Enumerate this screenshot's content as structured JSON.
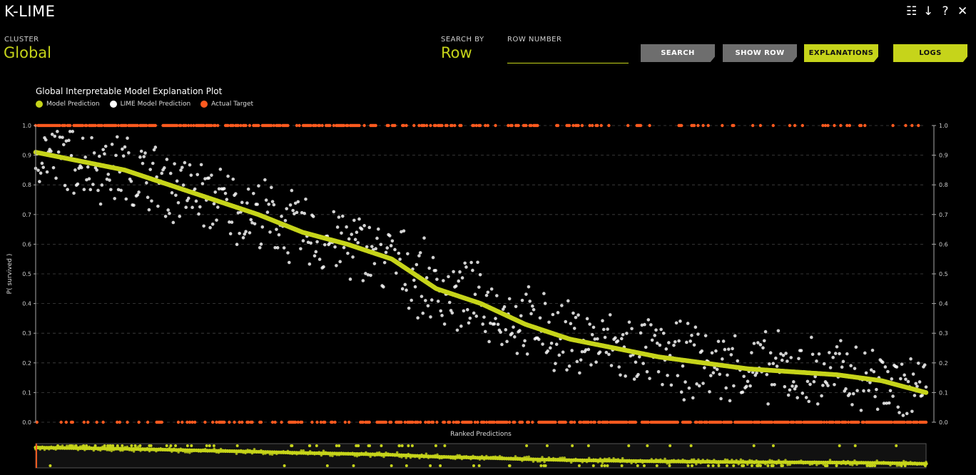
{
  "app": {
    "title": "K-LIME"
  },
  "top_icons": [
    "list-icon",
    "download-icon",
    "help-icon",
    "close-icon"
  ],
  "top_icon_glyphs": {
    "list": "☷",
    "download": "↓",
    "help": "?",
    "close": "✕"
  },
  "cluster": {
    "label": "CLUSTER",
    "value": "Global"
  },
  "search_by": {
    "label": "SEARCH BY",
    "value": "Row"
  },
  "row_number": {
    "label": "ROW NUMBER",
    "value": ""
  },
  "buttons": {
    "search": "SEARCH",
    "show_row": "SHOW ROW",
    "explanations": "EXPLANATIONS",
    "logs": "LOGS"
  },
  "colors": {
    "accent": "#c6d41a",
    "button_grey": "#6e6e6e",
    "lime_point": "#ffffff",
    "target": "#ff5a1f"
  },
  "chart_data": {
    "type": "scatter",
    "title": "Global Interpretable Model Explanation Plot",
    "xlabel": "Ranked Predictions",
    "ylabel": "P( survived )",
    "ylim": [
      0,
      1
    ],
    "yticks": [
      "0.0",
      "0.1",
      "0.2",
      "0.3",
      "0.4",
      "0.5",
      "0.6",
      "0.7",
      "0.8",
      "0.9",
      "1.0"
    ],
    "grid": true,
    "legend_position": "top-left",
    "series": [
      {
        "name": "Model Prediction",
        "color": "#c6d41a",
        "curve": [
          [
            0,
            0.91
          ],
          [
            0.05,
            0.88
          ],
          [
            0.1,
            0.85
          ],
          [
            0.15,
            0.8
          ],
          [
            0.2,
            0.75
          ],
          [
            0.25,
            0.7
          ],
          [
            0.3,
            0.64
          ],
          [
            0.35,
            0.6
          ],
          [
            0.4,
            0.55
          ],
          [
            0.45,
            0.45
          ],
          [
            0.5,
            0.4
          ],
          [
            0.55,
            0.33
          ],
          [
            0.6,
            0.28
          ],
          [
            0.65,
            0.25
          ],
          [
            0.7,
            0.22
          ],
          [
            0.75,
            0.2
          ],
          [
            0.8,
            0.18
          ],
          [
            0.85,
            0.17
          ],
          [
            0.9,
            0.16
          ],
          [
            0.95,
            0.14
          ],
          [
            1.0,
            0.1
          ]
        ]
      },
      {
        "name": "LIME Model Prediction",
        "color": "#ffffff",
        "spread": 0.12
      },
      {
        "name": "Actual Target",
        "color": "#ff5a1f",
        "values": [
          0,
          1
        ]
      }
    ]
  }
}
